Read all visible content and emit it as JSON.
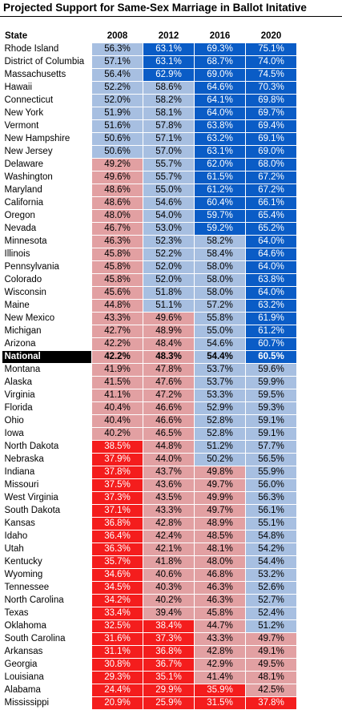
{
  "title": "Projected Support for Same-Sex Marriage in Ballot Initative",
  "colors": {
    "dark_blue": "#0a5cc6",
    "light_blue": "#a7bfe1",
    "pink": "#e2a0a2",
    "red": "#f41d1d",
    "national_bg": "#000000"
  },
  "chart_data": {
    "type": "table",
    "title": "Projected Support for Same-Sex Marriage in Ballot Initative",
    "columns": [
      "State",
      "2008",
      "2012",
      "2016",
      "2020"
    ],
    "rows": [
      {
        "state": "Rhode Island",
        "values": [
          "56.3%",
          "63.1%",
          "69.3%",
          "75.1%"
        ],
        "colors": [
          "lblue",
          "dblue",
          "dblue",
          "dblue"
        ],
        "group_start": false
      },
      {
        "state": "District of Columbia",
        "values": [
          "57.1%",
          "63.1%",
          "68.7%",
          "74.0%"
        ],
        "colors": [
          "lblue",
          "dblue",
          "dblue",
          "dblue"
        ],
        "group_start": false
      },
      {
        "state": "Massachusetts",
        "values": [
          "56.4%",
          "62.9%",
          "69.0%",
          "74.5%"
        ],
        "colors": [
          "lblue",
          "dblue",
          "dblue",
          "dblue"
        ],
        "group_start": false
      },
      {
        "state": "Hawaii",
        "values": [
          "52.2%",
          "58.6%",
          "64.6%",
          "70.3%"
        ],
        "colors": [
          "lblue",
          "lblue",
          "dblue",
          "dblue"
        ],
        "group_start": false
      },
      {
        "state": "Connecticut",
        "values": [
          "52.0%",
          "58.2%",
          "64.1%",
          "69.8%"
        ],
        "colors": [
          "lblue",
          "lblue",
          "dblue",
          "dblue"
        ],
        "group_start": false
      },
      {
        "state": "New York",
        "values": [
          "51.9%",
          "58.1%",
          "64.0%",
          "69.7%"
        ],
        "colors": [
          "lblue",
          "lblue",
          "dblue",
          "dblue"
        ],
        "group_start": true
      },
      {
        "state": "Vermont",
        "values": [
          "51.6%",
          "57.8%",
          "63.8%",
          "69.4%"
        ],
        "colors": [
          "lblue",
          "lblue",
          "dblue",
          "dblue"
        ],
        "group_start": false
      },
      {
        "state": "New Hampshire",
        "values": [
          "50.6%",
          "57.1%",
          "63.2%",
          "69.1%"
        ],
        "colors": [
          "lblue",
          "lblue",
          "dblue",
          "dblue"
        ],
        "group_start": false
      },
      {
        "state": "New Jersey",
        "values": [
          "50.6%",
          "57.0%",
          "63.1%",
          "69.0%"
        ],
        "colors": [
          "lblue",
          "lblue",
          "dblue",
          "dblue"
        ],
        "group_start": false
      },
      {
        "state": "Delaware",
        "values": [
          "49.2%",
          "55.7%",
          "62.0%",
          "68.0%"
        ],
        "colors": [
          "pink",
          "lblue",
          "dblue",
          "dblue"
        ],
        "group_start": false
      },
      {
        "state": "Washington",
        "values": [
          "49.6%",
          "55.7%",
          "61.5%",
          "67.2%"
        ],
        "colors": [
          "pink",
          "lblue",
          "dblue",
          "dblue"
        ],
        "group_start": true
      },
      {
        "state": "Maryland",
        "values": [
          "48.6%",
          "55.0%",
          "61.2%",
          "67.2%"
        ],
        "colors": [
          "pink",
          "lblue",
          "dblue",
          "dblue"
        ],
        "group_start": false
      },
      {
        "state": "California",
        "values": [
          "48.6%",
          "54.6%",
          "60.4%",
          "66.1%"
        ],
        "colors": [
          "pink",
          "lblue",
          "dblue",
          "dblue"
        ],
        "group_start": false
      },
      {
        "state": "Oregon",
        "values": [
          "48.0%",
          "54.0%",
          "59.7%",
          "65.4%"
        ],
        "colors": [
          "pink",
          "lblue",
          "dblue",
          "dblue"
        ],
        "group_start": false
      },
      {
        "state": "Nevada",
        "values": [
          "46.7%",
          "53.0%",
          "59.2%",
          "65.2%"
        ],
        "colors": [
          "pink",
          "lblue",
          "dblue",
          "dblue"
        ],
        "group_start": false
      },
      {
        "state": "Minnesota",
        "values": [
          "46.3%",
          "52.3%",
          "58.2%",
          "64.0%"
        ],
        "colors": [
          "pink",
          "lblue",
          "lblue",
          "dblue"
        ],
        "group_start": true
      },
      {
        "state": "Illinois",
        "values": [
          "45.8%",
          "52.2%",
          "58.4%",
          "64.6%"
        ],
        "colors": [
          "pink",
          "lblue",
          "lblue",
          "dblue"
        ],
        "group_start": false
      },
      {
        "state": "Pennsylvania",
        "values": [
          "45.8%",
          "52.0%",
          "58.0%",
          "64.0%"
        ],
        "colors": [
          "pink",
          "lblue",
          "lblue",
          "dblue"
        ],
        "group_start": false
      },
      {
        "state": "Colorado",
        "values": [
          "45.8%",
          "52.0%",
          "58.0%",
          "63.8%"
        ],
        "colors": [
          "pink",
          "lblue",
          "lblue",
          "dblue"
        ],
        "group_start": false
      },
      {
        "state": "Wisconsin",
        "values": [
          "45.6%",
          "51.8%",
          "58.0%",
          "64.0%"
        ],
        "colors": [
          "pink",
          "lblue",
          "lblue",
          "dblue"
        ],
        "group_start": false
      },
      {
        "state": "Maine",
        "values": [
          "44.8%",
          "51.1%",
          "57.2%",
          "63.2%"
        ],
        "colors": [
          "pink",
          "lblue",
          "lblue",
          "dblue"
        ],
        "group_start": true
      },
      {
        "state": "New Mexico",
        "values": [
          "43.3%",
          "49.6%",
          "55.8%",
          "61.9%"
        ],
        "colors": [
          "pink",
          "pink",
          "lblue",
          "dblue"
        ],
        "group_start": false
      },
      {
        "state": "Michigan",
        "values": [
          "42.7%",
          "48.9%",
          "55.0%",
          "61.2%"
        ],
        "colors": [
          "pink",
          "pink",
          "lblue",
          "dblue"
        ],
        "group_start": false
      },
      {
        "state": "Arizona",
        "values": [
          "42.2%",
          "48.4%",
          "54.6%",
          "60.7%"
        ],
        "colors": [
          "pink",
          "pink",
          "lblue",
          "dblue"
        ],
        "group_start": false
      },
      {
        "state": "National",
        "values": [
          "42.2%",
          "48.3%",
          "54.4%",
          "60.5%"
        ],
        "colors": [
          "pink",
          "pink",
          "lblue",
          "dblue"
        ],
        "group_start": false,
        "national": true
      },
      {
        "state": "Montana",
        "values": [
          "41.9%",
          "47.8%",
          "53.7%",
          "59.6%"
        ],
        "colors": [
          "pink",
          "pink",
          "lblue",
          "lblue"
        ],
        "group_start": false
      },
      {
        "state": "Alaska",
        "values": [
          "41.5%",
          "47.6%",
          "53.7%",
          "59.9%"
        ],
        "colors": [
          "pink",
          "pink",
          "lblue",
          "lblue"
        ],
        "group_start": false
      },
      {
        "state": "Virginia",
        "values": [
          "41.1%",
          "47.2%",
          "53.3%",
          "59.5%"
        ],
        "colors": [
          "pink",
          "pink",
          "lblue",
          "lblue"
        ],
        "group_start": false
      },
      {
        "state": "Florida",
        "values": [
          "40.4%",
          "46.6%",
          "52.9%",
          "59.3%"
        ],
        "colors": [
          "pink",
          "pink",
          "lblue",
          "lblue"
        ],
        "group_start": false
      },
      {
        "state": "Ohio",
        "values": [
          "40.4%",
          "46.6%",
          "52.8%",
          "59.1%"
        ],
        "colors": [
          "pink",
          "pink",
          "lblue",
          "lblue"
        ],
        "group_start": false
      },
      {
        "state": "Iowa",
        "values": [
          "40.2%",
          "46.5%",
          "52.8%",
          "59.1%"
        ],
        "colors": [
          "pink",
          "pink",
          "lblue",
          "lblue"
        ],
        "group_start": true
      },
      {
        "state": "North Dakota",
        "values": [
          "38.5%",
          "44.8%",
          "51.2%",
          "57.7%"
        ],
        "colors": [
          "red",
          "pink",
          "lblue",
          "lblue"
        ],
        "group_start": false
      },
      {
        "state": "Nebraska",
        "values": [
          "37.9%",
          "44.0%",
          "50.2%",
          "56.5%"
        ],
        "colors": [
          "red",
          "pink",
          "lblue",
          "lblue"
        ],
        "group_start": false
      },
      {
        "state": "Indiana",
        "values": [
          "37.8%",
          "43.7%",
          "49.8%",
          "55.9%"
        ],
        "colors": [
          "red",
          "pink",
          "pink",
          "lblue"
        ],
        "group_start": false
      },
      {
        "state": "Missouri",
        "values": [
          "37.5%",
          "43.6%",
          "49.7%",
          "56.0%"
        ],
        "colors": [
          "red",
          "pink",
          "pink",
          "lblue"
        ],
        "group_start": false
      },
      {
        "state": "West Virginia",
        "values": [
          "37.3%",
          "43.5%",
          "49.9%",
          "56.3%"
        ],
        "colors": [
          "red",
          "pink",
          "pink",
          "lblue"
        ],
        "group_start": true
      },
      {
        "state": "South Dakota",
        "values": [
          "37.1%",
          "43.3%",
          "49.7%",
          "56.1%"
        ],
        "colors": [
          "red",
          "pink",
          "pink",
          "lblue"
        ],
        "group_start": false
      },
      {
        "state": "Kansas",
        "values": [
          "36.8%",
          "42.8%",
          "48.9%",
          "55.1%"
        ],
        "colors": [
          "red",
          "pink",
          "pink",
          "lblue"
        ],
        "group_start": false
      },
      {
        "state": "Idaho",
        "values": [
          "36.4%",
          "42.4%",
          "48.5%",
          "54.8%"
        ],
        "colors": [
          "red",
          "pink",
          "pink",
          "lblue"
        ],
        "group_start": false
      },
      {
        "state": "Utah",
        "values": [
          "36.3%",
          "42.1%",
          "48.1%",
          "54.2%"
        ],
        "colors": [
          "red",
          "pink",
          "pink",
          "lblue"
        ],
        "group_start": false
      },
      {
        "state": "Kentucky",
        "values": [
          "35.7%",
          "41.8%",
          "48.0%",
          "54.4%"
        ],
        "colors": [
          "red",
          "pink",
          "pink",
          "lblue"
        ],
        "group_start": true
      },
      {
        "state": "Wyoming",
        "values": [
          "34.6%",
          "40.6%",
          "46.8%",
          "53.2%"
        ],
        "colors": [
          "red",
          "pink",
          "pink",
          "lblue"
        ],
        "group_start": false
      },
      {
        "state": "Tennessee",
        "values": [
          "34.5%",
          "40.3%",
          "46.3%",
          "52.6%"
        ],
        "colors": [
          "red",
          "pink",
          "pink",
          "lblue"
        ],
        "group_start": false
      },
      {
        "state": "North Carolina",
        "values": [
          "34.2%",
          "40.2%",
          "46.3%",
          "52.7%"
        ],
        "colors": [
          "red",
          "pink",
          "pink",
          "lblue"
        ],
        "group_start": false
      },
      {
        "state": "Texas",
        "values": [
          "33.4%",
          "39.4%",
          "45.8%",
          "52.4%"
        ],
        "colors": [
          "red",
          "pink",
          "pink",
          "lblue"
        ],
        "group_start": false
      },
      {
        "state": "Oklahoma",
        "values": [
          "32.5%",
          "38.4%",
          "44.7%",
          "51.2%"
        ],
        "colors": [
          "red",
          "red",
          "pink",
          "lblue"
        ],
        "group_start": true
      },
      {
        "state": "South Carolina",
        "values": [
          "31.6%",
          "37.3%",
          "43.3%",
          "49.7%"
        ],
        "colors": [
          "red",
          "red",
          "pink",
          "pink"
        ],
        "group_start": false
      },
      {
        "state": "Arkansas",
        "values": [
          "31.1%",
          "36.8%",
          "42.8%",
          "49.1%"
        ],
        "colors": [
          "red",
          "red",
          "pink",
          "pink"
        ],
        "group_start": false
      },
      {
        "state": "Georgia",
        "values": [
          "30.8%",
          "36.7%",
          "42.9%",
          "49.5%"
        ],
        "colors": [
          "red",
          "red",
          "pink",
          "pink"
        ],
        "group_start": false
      },
      {
        "state": "Louisiana",
        "values": [
          "29.3%",
          "35.1%",
          "41.4%",
          "48.1%"
        ],
        "colors": [
          "red",
          "red",
          "pink",
          "pink"
        ],
        "group_start": false
      },
      {
        "state": "Alabama",
        "values": [
          "24.4%",
          "29.9%",
          "35.9%",
          "42.5%"
        ],
        "colors": [
          "red",
          "red",
          "red",
          "pink"
        ],
        "group_start": true
      },
      {
        "state": "Mississippi",
        "values": [
          "20.9%",
          "25.9%",
          "31.5%",
          "37.8%"
        ],
        "colors": [
          "red",
          "red",
          "red",
          "red"
        ],
        "group_start": false
      }
    ]
  }
}
